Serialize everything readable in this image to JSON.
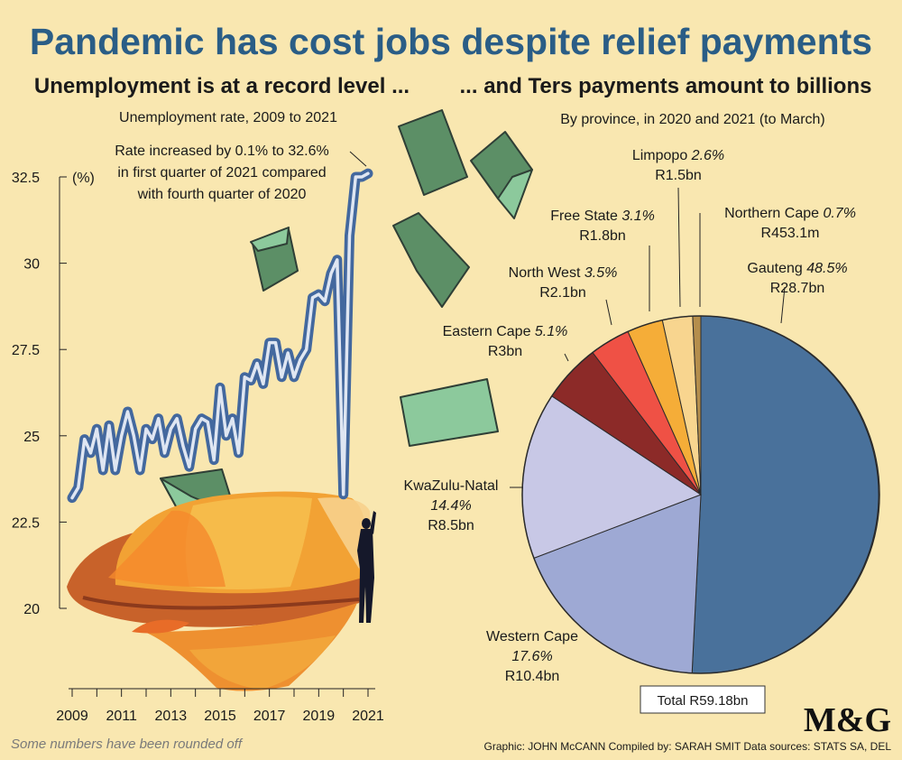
{
  "title": "Pandemic has cost jobs despite relief payments",
  "left_heading": "Unemployment is at a record level ...",
  "right_heading": "... and Ters payments amount to billions",
  "footnote": "Some numbers have been rounded off",
  "credits": "Graphic: JOHN McCANN  Compiled by: SARAH SMIT  Data sources: STATS SA, DEL",
  "logo_text": "M&G",
  "colors": {
    "background": "#f9e7b0",
    "title": "#2a5d86",
    "line_outline": "#43689e",
    "line_inner": "#dfe6f2",
    "money": "#5c8f66",
    "money_light": "#8cc99c",
    "helmet": "#f0a332"
  },
  "chart_data": [
    {
      "type": "line",
      "subtitle": "Unemployment rate, 2009 to 2021",
      "ylabel": "(%)",
      "ylim": [
        20,
        32.5
      ],
      "yticks": [
        "20",
        "22.5",
        "25",
        "27.5",
        "30",
        "32.5"
      ],
      "xticks": [
        "2009",
        "2011",
        "2013",
        "2015",
        "2017",
        "2019",
        "2021"
      ],
      "annotation": "Rate increased by 0.1% to 32.6%\nin first quarter of 2021 compared\nwith fourth quarter of 2020",
      "series": [
        {
          "x": [
            2009.0,
            2009.25,
            2009.5,
            2009.75,
            2010.0,
            2010.25,
            2010.5,
            2010.75,
            2011.0,
            2011.25,
            2011.5,
            2011.75,
            2012.0,
            2012.25,
            2012.5,
            2012.75,
            2013.0,
            2013.25,
            2013.5,
            2013.75,
            2014.0,
            2014.25,
            2014.5,
            2014.75,
            2015.0,
            2015.25,
            2015.5,
            2015.75,
            2016.0,
            2016.25,
            2016.5,
            2016.75,
            2017.0,
            2017.25,
            2017.5,
            2017.75,
            2018.0,
            2018.25,
            2018.5,
            2018.75,
            2019.0,
            2019.25,
            2019.5,
            2019.75,
            2020.0,
            2020.25,
            2020.5,
            2020.75,
            2021.0
          ],
          "values": [
            23.2,
            23.5,
            24.9,
            24.5,
            25.2,
            24.0,
            25.3,
            24.0,
            25.0,
            25.7,
            25.0,
            24.0,
            25.2,
            24.9,
            25.5,
            24.5,
            25.2,
            25.5,
            24.7,
            24.1,
            25.2,
            25.5,
            25.4,
            24.3,
            26.4,
            25.0,
            25.5,
            24.5,
            26.7,
            26.6,
            27.1,
            26.5,
            27.7,
            27.7,
            26.7,
            27.4,
            26.7,
            27.2,
            27.5,
            29.0,
            29.1,
            28.9,
            29.7,
            30.1,
            23.3,
            30.8,
            32.5,
            32.5,
            32.6
          ]
        }
      ]
    },
    {
      "type": "pie",
      "subtitle": "By province, in 2020 and 2021 (to March)",
      "total_label": "Total R59.18bn",
      "slices": [
        {
          "name": "Gauteng",
          "percent": "48.5%",
          "amount": "R28.7bn",
          "value": 48.5,
          "color": "#49719b"
        },
        {
          "name": "Western Cape",
          "percent": "17.6%",
          "amount": "R10.4bn",
          "value": 17.6,
          "color": "#9ea9d4"
        },
        {
          "name": "KwaZulu-Natal",
          "percent": "14.4%",
          "amount": "R8.5bn",
          "value": 14.4,
          "color": "#c8c8e6"
        },
        {
          "name": "Eastern Cape",
          "percent": "5.1%",
          "amount": "R3bn",
          "value": 5.1,
          "color": "#8c2a28"
        },
        {
          "name": "North West",
          "percent": "3.5%",
          "amount": "R2.1bn",
          "value": 3.5,
          "color": "#ef5145"
        },
        {
          "name": "Free State",
          "percent": "3.1%",
          "amount": "R1.8bn",
          "value": 3.1,
          "color": "#f5ad38"
        },
        {
          "name": "Limpopo",
          "percent": "2.6%",
          "amount": "R1.5bn",
          "value": 2.6,
          "color": "#f8d58f"
        },
        {
          "name": "Northern Cape",
          "percent": "0.7%",
          "amount": "R453.1m",
          "value": 0.7,
          "color": "#b58e4c"
        }
      ]
    }
  ]
}
